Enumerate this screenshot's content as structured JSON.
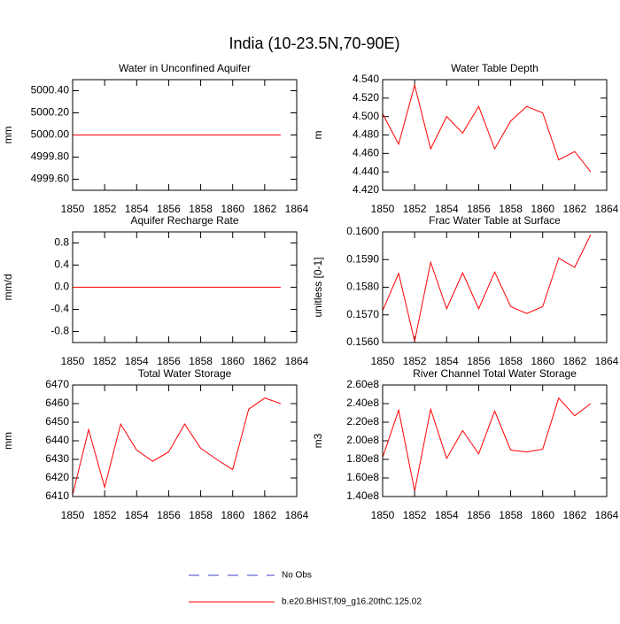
{
  "title": "India (10-23.5N,70-90E)",
  "legend": [
    {
      "name": "No Obs",
      "color": "#3c3cc8",
      "dashed": true
    },
    {
      "name": "b.e20.BHIST.f09_g16.20thC.125.02",
      "color": "#ff0000",
      "dashed": false
    }
  ],
  "chart_data": [
    {
      "type": "line",
      "title": "Water in Unconfined Aquifer",
      "ylabel": "mm",
      "color": "#ff0000",
      "x": [
        1850,
        1851,
        1852,
        1853,
        1854,
        1855,
        1856,
        1857,
        1858,
        1859,
        1860,
        1861,
        1862,
        1863
      ],
      "values": [
        5000,
        5000,
        5000,
        5000,
        5000,
        5000,
        5000,
        5000,
        5000,
        5000,
        5000,
        5000,
        5000,
        5000
      ],
      "xlim": [
        1850,
        1864
      ],
      "xticks": [
        1850,
        1852,
        1854,
        1856,
        1858,
        1860,
        1862,
        1864
      ],
      "ylim": [
        4999.5,
        5000.5
      ],
      "yticks": [
        {
          "value": 4999.6,
          "label": "4999.60"
        },
        {
          "value": 4999.8,
          "label": "4999.80"
        },
        {
          "value": 5000,
          "label": "5000.00"
        },
        {
          "value": 5000.2,
          "label": "5000.20"
        },
        {
          "value": 5000.4,
          "label": "5000.40"
        }
      ]
    },
    {
      "type": "line",
      "title": "Water Table Depth",
      "ylabel": "m",
      "color": "#ff0000",
      "x": [
        1850,
        1851,
        1852,
        1853,
        1854,
        1855,
        1856,
        1857,
        1858,
        1859,
        1860,
        1861,
        1862,
        1863
      ],
      "values": [
        4.503,
        4.47,
        4.534,
        4.465,
        4.5,
        4.482,
        4.511,
        4.465,
        4.495,
        4.511,
        4.504,
        4.453,
        4.462,
        4.44
      ],
      "xlim": [
        1850,
        1864
      ],
      "xticks": [
        1850,
        1852,
        1854,
        1856,
        1858,
        1860,
        1862,
        1864
      ],
      "ylim": [
        4.42,
        4.54
      ],
      "yticks": [
        {
          "value": 4.42,
          "label": "4.420"
        },
        {
          "value": 4.44,
          "label": "4.440"
        },
        {
          "value": 4.46,
          "label": "4.460"
        },
        {
          "value": 4.48,
          "label": "4.480"
        },
        {
          "value": 4.5,
          "label": "4.500"
        },
        {
          "value": 4.52,
          "label": "4.520"
        },
        {
          "value": 4.54,
          "label": "4.540"
        }
      ]
    },
    {
      "type": "line",
      "title": "Aquifer Recharge Rate",
      "ylabel": "mm/d",
      "color": "#ff0000",
      "x": [
        1850,
        1851,
        1852,
        1853,
        1854,
        1855,
        1856,
        1857,
        1858,
        1859,
        1860,
        1861,
        1862,
        1863
      ],
      "values": [
        0,
        0,
        0,
        0,
        0,
        0,
        0,
        0,
        0,
        0,
        0,
        0,
        0,
        0
      ],
      "xlim": [
        1850,
        1864
      ],
      "xticks": [
        1850,
        1852,
        1854,
        1856,
        1858,
        1860,
        1862,
        1864
      ],
      "ylim": [
        -1,
        1
      ],
      "yticks": [
        -0.8,
        -0.4,
        {
          "value": 0,
          "label": "0.0"
        },
        0.4,
        0.8
      ]
    },
    {
      "type": "line",
      "title": "Frac Water Table at Surface",
      "ylabel": "unitless [0-1]",
      "color": "#ff0000",
      "x": [
        1850,
        1851,
        1852,
        1853,
        1854,
        1855,
        1856,
        1857,
        1858,
        1859,
        1860,
        1861,
        1862,
        1863
      ],
      "values": [
        0.15715,
        0.1585,
        0.15605,
        0.1589,
        0.15722,
        0.15852,
        0.15722,
        0.15855,
        0.1573,
        0.15705,
        0.1573,
        0.15905,
        0.15872,
        0.1599
      ],
      "xlim": [
        1850,
        1864
      ],
      "xticks": [
        1850,
        1852,
        1854,
        1856,
        1858,
        1860,
        1862,
        1864
      ],
      "ylim": [
        0.156,
        0.16
      ],
      "yticks": [
        {
          "value": 0.156,
          "label": "0.1560"
        },
        {
          "value": 0.157,
          "label": "0.1570"
        },
        {
          "value": 0.158,
          "label": "0.1580"
        },
        {
          "value": 0.159,
          "label": "0.1590"
        },
        {
          "value": 0.16,
          "label": "0.1600"
        }
      ]
    },
    {
      "type": "line",
      "title": "Total Water Storage",
      "ylabel": "mm",
      "color": "#ff0000",
      "x": [
        1850,
        1851,
        1852,
        1853,
        1854,
        1855,
        1856,
        1857,
        1858,
        1859,
        1860,
        1861,
        1862,
        1863
      ],
      "values": [
        6411,
        6446,
        6415,
        6449,
        6435,
        6429,
        6434,
        6449,
        6436,
        6430,
        6424.5,
        6457,
        6463,
        6460
      ],
      "xlim": [
        1850,
        1864
      ],
      "xticks": [
        1850,
        1852,
        1854,
        1856,
        1858,
        1860,
        1862,
        1864
      ],
      "ylim": [
        6410,
        6470
      ],
      "yticks": [
        6410,
        6420,
        6430,
        6440,
        6450,
        6460,
        6470
      ]
    },
    {
      "type": "line",
      "title": "River Channel Total Water Storage",
      "ylabel": "m3",
      "color": "#ff0000",
      "x": [
        1850,
        1851,
        1852,
        1853,
        1854,
        1855,
        1856,
        1857,
        1858,
        1859,
        1860,
        1861,
        1862,
        1863
      ],
      "values": [
        182000000,
        233000000,
        146000000,
        234000000,
        181000000,
        211000000,
        186000000,
        232000000,
        190000000,
        188000000,
        191000000,
        246000000,
        227000000,
        240000000
      ],
      "xlim": [
        1850,
        1864
      ],
      "xticks": [
        1850,
        1852,
        1854,
        1856,
        1858,
        1860,
        1862,
        1864
      ],
      "ylim": [
        140000000,
        260000000
      ],
      "yticks": [
        {
          "value": 140000000,
          "label": "1.40e8"
        },
        {
          "value": 160000000,
          "label": "1.60e8"
        },
        {
          "value": 180000000,
          "label": "1.80e8"
        },
        {
          "value": 200000000,
          "label": "2.00e8"
        },
        {
          "value": 220000000,
          "label": "2.20e8"
        },
        {
          "value": 240000000,
          "label": "2.40e8"
        },
        {
          "value": 260000000,
          "label": "2.60e8"
        }
      ]
    }
  ]
}
